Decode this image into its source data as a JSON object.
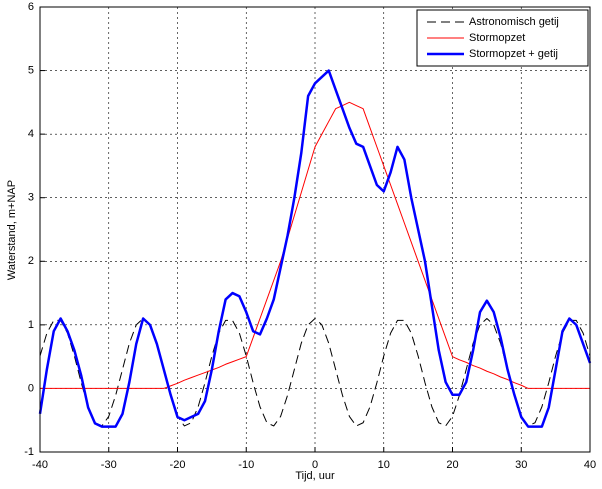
{
  "chart_data": {
    "type": "line",
    "xlabel": "Tijd, uur",
    "ylabel": "Waterstand, m+NAP",
    "x": [
      -40,
      -39,
      -38,
      -37,
      -36,
      -35,
      -34,
      -33,
      -32,
      -31,
      -30,
      -29,
      -28,
      -27,
      -26,
      -25,
      -24,
      -23,
      -22,
      -21,
      -20,
      -19,
      -18,
      -17,
      -16,
      -15,
      -14,
      -13,
      -12,
      -11,
      -10,
      -9,
      -8,
      -7,
      -6,
      -5,
      -4,
      -3,
      -2,
      -1,
      0,
      1,
      2,
      3,
      4,
      5,
      6,
      7,
      8,
      9,
      10,
      11,
      12,
      13,
      14,
      15,
      16,
      17,
      18,
      19,
      20,
      21,
      22,
      23,
      24,
      25,
      26,
      27,
      28,
      29,
      30,
      31,
      32,
      33,
      34,
      35,
      36,
      37,
      38,
      39,
      40
    ],
    "series": [
      {
        "name": "Astronomisch getij",
        "color": "#000000",
        "dash": true,
        "width": 1,
        "values": [
          0.51,
          0.87,
          1.07,
          1.07,
          0.87,
          0.51,
          0.09,
          -0.29,
          -0.54,
          -0.59,
          -0.44,
          -0.11,
          0.3,
          0.71,
          1.0,
          1.1,
          1.0,
          0.71,
          0.3,
          -0.11,
          -0.44,
          -0.59,
          -0.54,
          -0.29,
          0.09,
          0.51,
          0.87,
          1.07,
          1.07,
          0.87,
          0.51,
          0.09,
          -0.29,
          -0.54,
          -0.59,
          -0.44,
          -0.11,
          0.3,
          0.71,
          1.0,
          1.1,
          1.0,
          0.71,
          0.3,
          -0.11,
          -0.44,
          -0.59,
          -0.54,
          -0.29,
          0.09,
          0.51,
          0.87,
          1.07,
          1.07,
          0.87,
          0.51,
          0.09,
          -0.29,
          -0.54,
          -0.59,
          -0.44,
          -0.11,
          0.3,
          0.71,
          1.0,
          1.1,
          1.0,
          0.71,
          0.3,
          -0.11,
          -0.44,
          -0.59,
          -0.54,
          -0.29,
          0.09,
          0.51,
          0.87,
          1.07,
          1.07,
          0.87,
          0.51
        ]
      },
      {
        "name": "Stormopzet",
        "color": "#ff0000",
        "dash": false,
        "width": 1,
        "values": [
          0,
          0,
          0,
          0,
          0,
          0,
          0,
          0,
          0,
          0,
          0,
          0,
          0,
          0,
          0,
          0,
          0,
          0,
          0,
          0.04,
          0.08,
          0.13,
          0.17,
          0.21,
          0.25,
          0.29,
          0.33,
          0.38,
          0.42,
          0.46,
          0.5,
          0.8,
          1.1,
          1.4,
          1.7,
          2.0,
          2.36,
          2.72,
          3.08,
          3.44,
          3.8,
          4.0,
          4.2,
          4.4,
          4.45,
          4.5,
          4.45,
          4.4,
          4.1,
          3.8,
          3.5,
          3.2,
          2.9,
          2.6,
          2.3,
          2.0,
          1.7,
          1.4,
          1.1,
          0.8,
          0.5,
          0.45,
          0.41,
          0.36,
          0.32,
          0.27,
          0.23,
          0.18,
          0.14,
          0.09,
          0.05,
          0,
          0,
          0,
          0,
          0,
          0,
          0,
          0,
          0,
          0
        ]
      },
      {
        "name": "Stormopzet + getij",
        "color": "#0000ff",
        "dash": false,
        "width": 2.5,
        "values": [
          -0.4,
          0.3,
          0.9,
          1.1,
          0.9,
          0.6,
          0.2,
          -0.3,
          -0.55,
          -0.6,
          -0.6,
          -0.6,
          -0.4,
          0.1,
          0.7,
          1.1,
          1.0,
          0.7,
          0.3,
          -0.1,
          -0.45,
          -0.5,
          -0.45,
          -0.4,
          -0.2,
          0.3,
          0.9,
          1.4,
          1.5,
          1.45,
          1.2,
          0.9,
          0.85,
          1.1,
          1.4,
          1.9,
          2.4,
          3.0,
          3.7,
          4.6,
          4.8,
          4.9,
          5.0,
          4.7,
          4.4,
          4.1,
          3.85,
          3.8,
          3.5,
          3.2,
          3.1,
          3.4,
          3.8,
          3.6,
          3.0,
          2.5,
          2.0,
          1.3,
          0.6,
          0.1,
          -0.1,
          -0.1,
          0.1,
          0.6,
          1.2,
          1.38,
          1.2,
          0.8,
          0.3,
          -0.1,
          -0.45,
          -0.6,
          -0.6,
          -0.6,
          -0.3,
          0.3,
          0.9,
          1.1,
          1.0,
          0.7,
          0.4
        ]
      }
    ],
    "xlim": [
      -40,
      40
    ],
    "xticks": [
      -40,
      -30,
      -20,
      -10,
      0,
      10,
      20,
      30,
      40
    ],
    "ylim": [
      -1,
      6
    ],
    "yticks": [
      -1,
      0,
      1,
      2,
      3,
      4,
      5,
      6
    ],
    "grid": true,
    "legend": "upper right"
  }
}
